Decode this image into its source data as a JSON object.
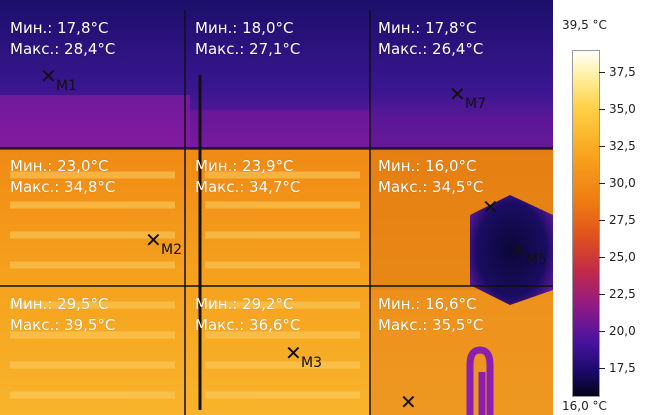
{
  "cells": [
    {
      "min": "Мин.: 17,8°C",
      "max": "Макс.: 28,4°C"
    },
    {
      "min": "Мин.: 18,0°C",
      "max": "Макс.: 27,1°C"
    },
    {
      "min": "Мин.: 17,8°C",
      "max": "Макс.: 26,4°C"
    },
    {
      "min": "Мин.: 23,0°C",
      "max": "Макс.: 34,8°C"
    },
    {
      "min": "Мин.: 23,9°C",
      "max": "Макс.: 34,7°C"
    },
    {
      "min": "Мин.: 16,0°C",
      "max": "Макс.: 34,5°C"
    },
    {
      "min": "Мин.: 29,5°C",
      "max": "Макс.: 39,5°C"
    },
    {
      "min": "Мин.: 29,2°C",
      "max": "Макс.: 36,6°C"
    },
    {
      "min": "Мин.: 16,6°C",
      "max": "Макс.: 35,5°C"
    }
  ],
  "markers": [
    "M1",
    "M2",
    "M3",
    "M5",
    "M7"
  ],
  "scale": {
    "max_label": "39,5 °C",
    "min_label": "16,0 °C",
    "ticks": [
      "37,5",
      "35,0",
      "32,5",
      "30,0",
      "27,5",
      "25,0",
      "22,5",
      "20,0",
      "17,5"
    ]
  }
}
